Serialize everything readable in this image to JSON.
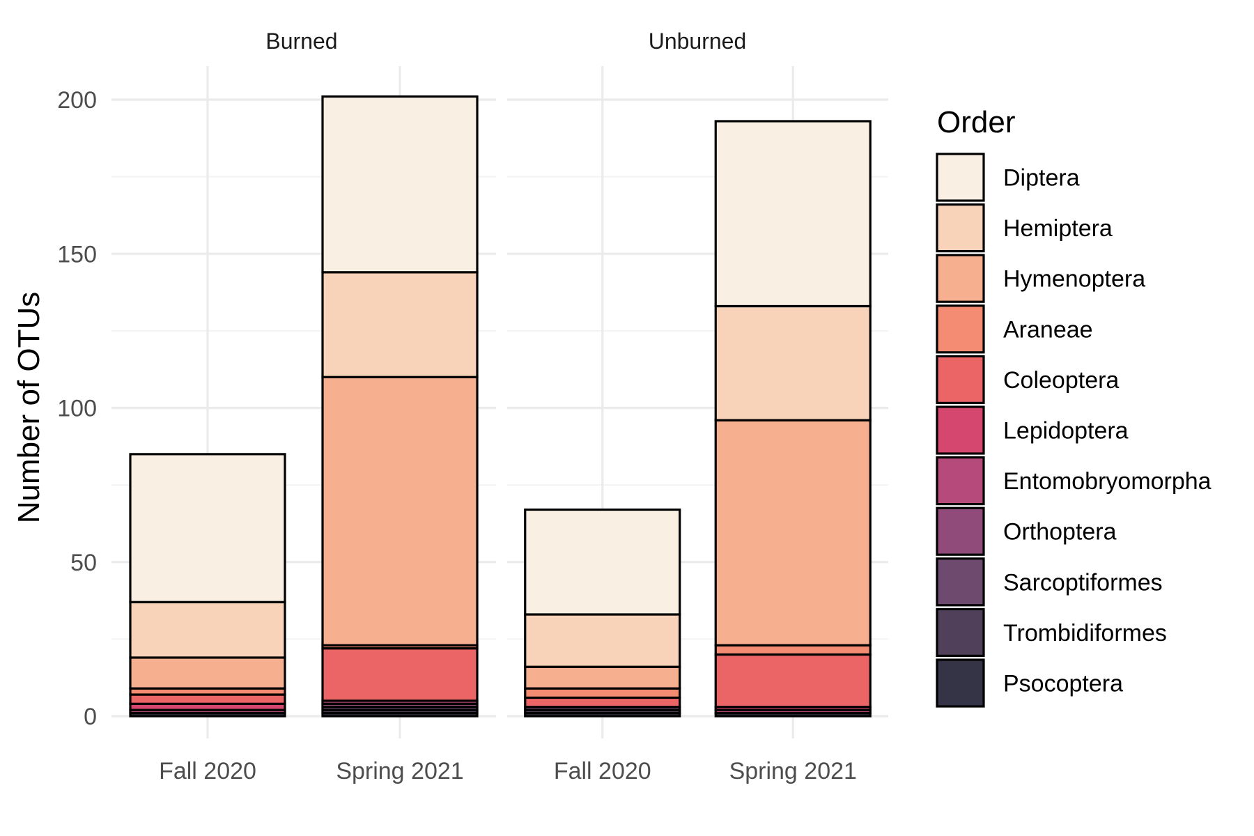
{
  "chart_data": {
    "type": "bar",
    "stacked": true,
    "ylabel": "Number of OTUs",
    "xlabel": "",
    "ylim": [
      0,
      201
    ],
    "y_ticks": [
      0,
      50,
      100,
      150,
      200
    ],
    "categories": [
      "Fall 2020",
      "Spring 2021"
    ],
    "grid": true,
    "legend": {
      "title": "Order",
      "placement": "right",
      "entries": [
        {
          "name": "Diptera",
          "color": "#FAEFE3"
        },
        {
          "name": "Hemiptera",
          "color": "#F9D3B9"
        },
        {
          "name": "Hymenoptera",
          "color": "#F7B08F"
        },
        {
          "name": "Araneae",
          "color": "#F38C73"
        },
        {
          "name": "Coleoptera",
          "color": "#EB6466"
        },
        {
          "name": "Lepidoptera",
          "color": "#D6476F"
        },
        {
          "name": "Entomobryomorpha",
          "color": "#B64A7B"
        },
        {
          "name": "Orthoptera",
          "color": "#914B7A"
        },
        {
          "name": "Sarcoptiformes",
          "color": "#6E4A6F"
        },
        {
          "name": "Trombidiformes",
          "color": "#50405A"
        },
        {
          "name": "Psocoptera",
          "color": "#353447"
        }
      ]
    },
    "panels": [
      {
        "title": "Burned",
        "bars": [
          {
            "category": "Fall 2020",
            "segments": [
              {
                "order": "Psocoptera",
                "value": 1
              },
              {
                "order": "Trombidiformes",
                "value": 0
              },
              {
                "order": "Sarcoptiformes",
                "value": 0
              },
              {
                "order": "Orthoptera",
                "value": 0
              },
              {
                "order": "Entomobryomorpha",
                "value": 1
              },
              {
                "order": "Lepidoptera",
                "value": 2
              },
              {
                "order": "Coleoptera",
                "value": 3
              },
              {
                "order": "Araneae",
                "value": 2
              },
              {
                "order": "Hymenoptera",
                "value": 10
              },
              {
                "order": "Hemiptera",
                "value": 18
              },
              {
                "order": "Diptera",
                "value": 48
              }
            ]
          },
          {
            "category": "Spring 2021",
            "segments": [
              {
                "order": "Psocoptera",
                "value": 1
              },
              {
                "order": "Trombidiformes",
                "value": 1
              },
              {
                "order": "Sarcoptiformes",
                "value": 1
              },
              {
                "order": "Orthoptera",
                "value": 1
              },
              {
                "order": "Entomobryomorpha",
                "value": 1
              },
              {
                "order": "Lepidoptera",
                "value": 0
              },
              {
                "order": "Coleoptera",
                "value": 17
              },
              {
                "order": "Araneae",
                "value": 1
              },
              {
                "order": "Hymenoptera",
                "value": 87
              },
              {
                "order": "Hemiptera",
                "value": 34
              },
              {
                "order": "Diptera",
                "value": 57
              }
            ]
          }
        ]
      },
      {
        "title": "Unburned",
        "bars": [
          {
            "category": "Fall 2020",
            "segments": [
              {
                "order": "Psocoptera",
                "value": 1
              },
              {
                "order": "Trombidiformes",
                "value": 1
              },
              {
                "order": "Sarcoptiformes",
                "value": 1
              },
              {
                "order": "Orthoptera",
                "value": 0
              },
              {
                "order": "Entomobryomorpha",
                "value": 0
              },
              {
                "order": "Lepidoptera",
                "value": 0
              },
              {
                "order": "Coleoptera",
                "value": 3
              },
              {
                "order": "Araneae",
                "value": 3
              },
              {
                "order": "Hymenoptera",
                "value": 7
              },
              {
                "order": "Hemiptera",
                "value": 17
              },
              {
                "order": "Diptera",
                "value": 34
              }
            ]
          },
          {
            "category": "Spring 2021",
            "segments": [
              {
                "order": "Psocoptera",
                "value": 1
              },
              {
                "order": "Trombidiformes",
                "value": 0
              },
              {
                "order": "Sarcoptiformes",
                "value": 0
              },
              {
                "order": "Orthoptera",
                "value": 0
              },
              {
                "order": "Entomobryomorpha",
                "value": 1
              },
              {
                "order": "Lepidoptera",
                "value": 1
              },
              {
                "order": "Coleoptera",
                "value": 17
              },
              {
                "order": "Araneae",
                "value": 3
              },
              {
                "order": "Hymenoptera",
                "value": 73
              },
              {
                "order": "Hemiptera",
                "value": 37
              },
              {
                "order": "Diptera",
                "value": 60
              }
            ]
          }
        ]
      }
    ]
  }
}
